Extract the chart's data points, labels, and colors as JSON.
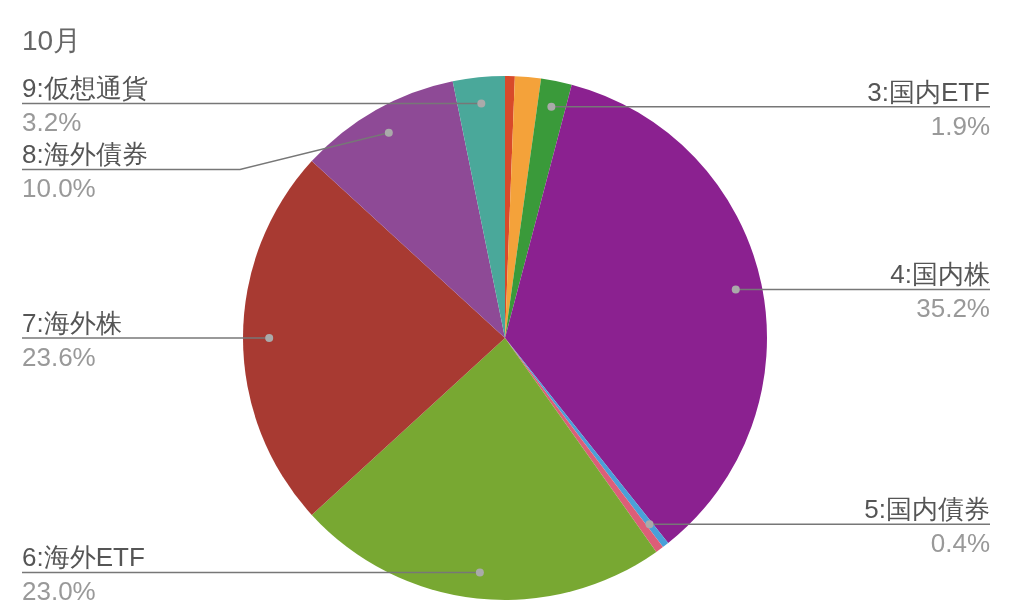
{
  "chart_data": {
    "type": "pie",
    "title": "10月",
    "categories": [
      null,
      null,
      "3:国内ETF",
      "4:国内株",
      "5:国内債券",
      null,
      "6:海外ETF",
      "7:海外株",
      "8:海外債券",
      "9:仮想通貨"
    ],
    "values": [
      0.6,
      1.6,
      1.9,
      35.2,
      0.4,
      0.5,
      23.0,
      23.6,
      10.0,
      3.2
    ],
    "value_labels": [
      null,
      null,
      "1.9%",
      "35.2%",
      "0.4%",
      null,
      "23.0%",
      "23.6%",
      "10.0%",
      "3.2%"
    ],
    "colors": [
      "#d84a2a",
      "#f4a23a",
      "#3a9a3a",
      "#8b2190",
      "#4aa0d8",
      "#dd5e78",
      "#78a832",
      "#a83a32",
      "#8e4a96",
      "#4aa89a"
    ]
  }
}
